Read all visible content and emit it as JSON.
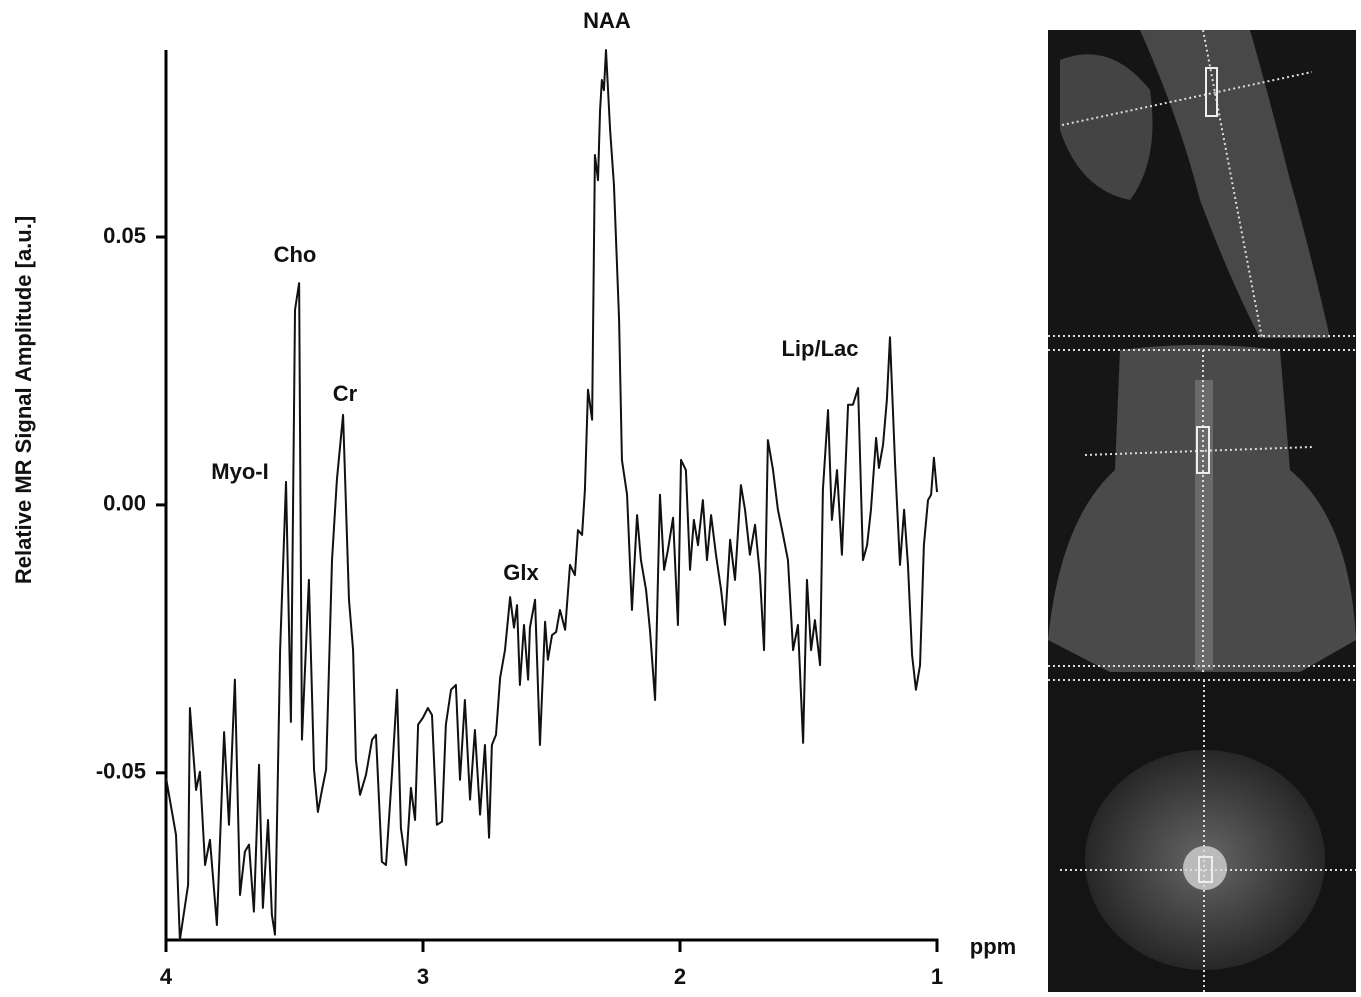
{
  "chart_data": {
    "type": "line",
    "xlabel": "ppm",
    "ylabel": "Relative MR Signal Amplitude [a.u.]",
    "annotations": [
      "NAA",
      "Cho",
      "Cr",
      "Myo-I",
      "Glx",
      "Lip/Lac"
    ],
    "xlim": [
      4,
      1
    ],
    "xticks": [
      4,
      3,
      2,
      1
    ],
    "ylim": [
      -0.0812,
      0.0849
    ],
    "yticks": [
      -0.05,
      {
        "value": 0,
        "label": "0.00"
      },
      0.05
    ],
    "color": "#111111",
    "x": [
      4.0,
      3.961,
      3.946,
      3.914,
      3.907,
      3.883,
      3.868,
      3.848,
      3.829,
      3.802,
      3.774,
      3.755,
      3.732,
      3.712,
      3.693,
      3.677,
      3.658,
      3.638,
      3.623,
      3.603,
      3.588,
      3.576,
      3.556,
      3.533,
      3.514,
      3.498,
      3.482,
      3.471,
      3.444,
      3.424,
      3.409,
      3.393,
      3.377,
      3.354,
      3.335,
      3.311,
      3.288,
      3.272,
      3.261,
      3.245,
      3.222,
      3.198,
      3.183,
      3.16,
      3.144,
      3.121,
      3.101,
      3.086,
      3.066,
      3.047,
      3.031,
      3.019,
      3.0,
      2.981,
      2.965,
      2.946,
      2.926,
      2.911,
      2.891,
      2.872,
      2.856,
      2.837,
      2.817,
      2.798,
      2.778,
      2.759,
      2.743,
      2.732,
      2.716,
      2.7,
      2.681,
      2.661,
      2.646,
      2.634,
      2.623,
      2.607,
      2.591,
      2.584,
      2.564,
      2.545,
      2.525,
      2.514,
      2.498,
      2.482,
      2.467,
      2.447,
      2.428,
      2.409,
      2.397,
      2.381,
      2.37,
      2.358,
      2.342,
      2.331,
      2.319,
      2.311,
      2.304,
      2.296,
      2.288,
      2.272,
      2.257,
      2.237,
      2.226,
      2.206,
      2.187,
      2.167,
      2.152,
      2.132,
      2.117,
      2.097,
      2.078,
      2.062,
      2.047,
      2.027,
      2.008,
      1.996,
      1.977,
      1.961,
      1.946,
      1.93,
      1.911,
      1.895,
      1.879,
      1.86,
      1.84,
      1.825,
      1.805,
      1.786,
      1.763,
      1.747,
      1.728,
      1.708,
      1.689,
      1.673,
      1.658,
      1.638,
      1.619,
      1.599,
      1.58,
      1.56,
      1.541,
      1.521,
      1.506,
      1.49,
      1.475,
      1.455,
      1.444,
      1.424,
      1.409,
      1.389,
      1.37,
      1.346,
      1.327,
      1.307,
      1.288,
      1.272,
      1.257,
      1.237,
      1.226,
      1.21,
      1.195,
      1.183,
      1.163,
      1.144,
      1.128,
      1.113,
      1.097,
      1.082,
      1.066,
      1.051,
      1.035,
      1.023,
      1.012,
      1.0
    ],
    "values": [
      -0.0509,
      -0.0616,
      -0.0812,
      -0.0709,
      -0.0379,
      -0.0532,
      -0.0498,
      -0.0672,
      -0.0625,
      -0.0784,
      -0.0424,
      -0.0597,
      -0.0326,
      -0.0728,
      -0.0647,
      -0.0634,
      -0.0759,
      -0.0485,
      -0.0752,
      -0.0588,
      -0.0765,
      -0.0802,
      -0.0271,
      0.0043,
      -0.0405,
      0.0364,
      0.0414,
      -0.0438,
      -0.014,
      -0.0494,
      -0.0573,
      -0.0532,
      -0.0494,
      -0.0103,
      0.0047,
      0.0168,
      -0.0177,
      -0.0271,
      -0.0476,
      -0.0541,
      -0.0504,
      -0.0438,
      -0.0429,
      -0.0666,
      -0.0672,
      -0.0504,
      -0.0345,
      -0.0603,
      -0.0672,
      -0.0528,
      -0.0588,
      -0.041,
      -0.0397,
      -0.0379,
      -0.0392,
      -0.0597,
      -0.0591,
      -0.041,
      -0.0345,
      -0.0336,
      -0.0513,
      -0.0364,
      -0.055,
      -0.042,
      -0.0578,
      -0.0448,
      -0.0621,
      -0.0448,
      -0.0429,
      -0.0323,
      -0.0271,
      -0.0172,
      -0.0229,
      -0.0187,
      -0.0336,
      -0.0224,
      -0.0326,
      -0.0229,
      -0.0177,
      -0.0448,
      -0.0218,
      -0.0289,
      -0.0243,
      -0.0237,
      -0.0196,
      -0.0233,
      -0.0112,
      -0.0131,
      -0.0047,
      -0.0056,
      0.0028,
      0.0215,
      0.0159,
      0.0653,
      0.0606,
      0.0737,
      0.0793,
      0.0774,
      0.0849,
      0.07,
      0.0597,
      0.0345,
      0.0084,
      0.0019,
      -0.0196,
      -0.0019,
      -0.0103,
      -0.0159,
      -0.0233,
      -0.0364,
      0.0019,
      -0.0121,
      -0.0084,
      -0.0024,
      -0.0224,
      0.0084,
      0.0065,
      -0.0121,
      -0.0028,
      -0.0075,
      0.0009,
      -0.0103,
      -0.0019,
      -0.0093,
      -0.0159,
      -0.0224,
      -0.0065,
      -0.014,
      0.0037,
      -0.0009,
      -0.0093,
      -0.0037,
      -0.0131,
      -0.0271,
      0.0121,
      0.0065,
      -0.0009,
      -0.0056,
      -0.0103,
      -0.0271,
      -0.0224,
      -0.0444,
      -0.014,
      -0.0271,
      -0.0215,
      -0.0299,
      0.0028,
      0.0177,
      -0.0028,
      0.0065,
      -0.0093,
      0.0187,
      0.0187,
      0.0218,
      -0.0103,
      -0.0075,
      -0.0009,
      0.0125,
      0.0069,
      0.0112,
      0.0196,
      0.0313,
      0.0075,
      -0.0112,
      -0.0009,
      -0.0112,
      -0.028,
      -0.0345,
      -0.0299,
      -0.0075,
      0.0009,
      0.0019,
      0.0088,
      0.0024
    ]
  }
}
